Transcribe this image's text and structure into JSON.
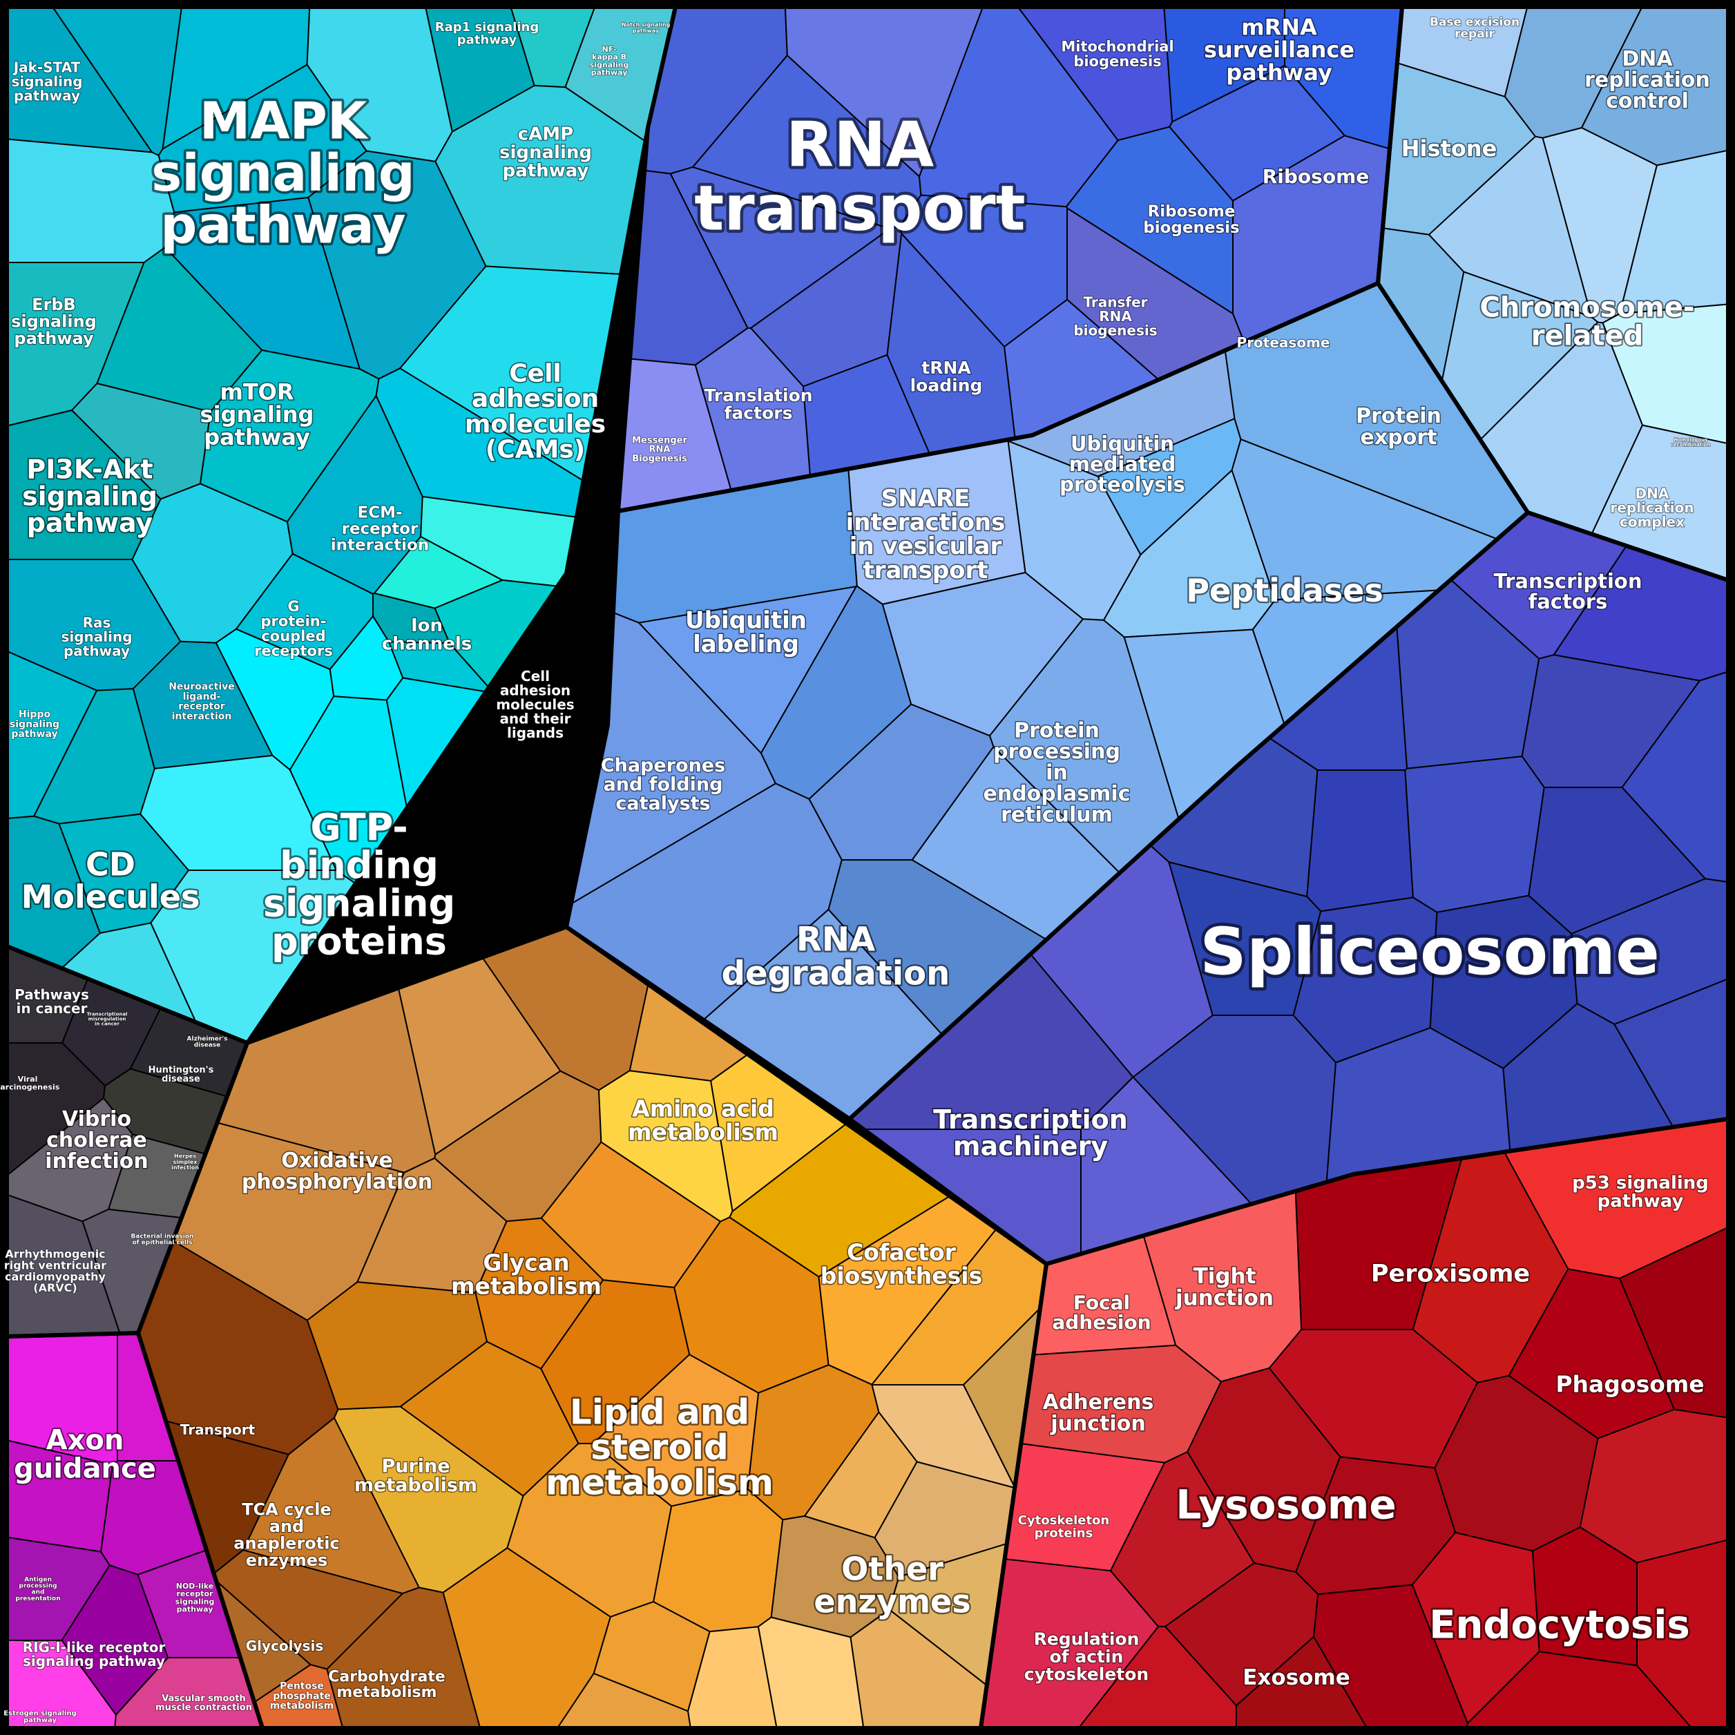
{
  "title": "",
  "colors": {
    "signaling": "#00c4dc",
    "genetic": "#5a73e6",
    "protein": "#7eb2f2",
    "spliceosome": "#3848b8",
    "metabolism": "#e8951e",
    "disease": "#4a4a55",
    "immune": "#d21fd2",
    "cellular": "#cc1020",
    "other_enzymes": "#e0b070"
  },
  "labels": [
    {
      "text": "MAPK\nsignaling\npathway",
      "group": "signaling"
    },
    {
      "text": "Jak-STAT\nsignaling\npathway",
      "group": "signaling"
    },
    {
      "text": "Rap1 signaling\npathway",
      "group": "signaling"
    },
    {
      "text": "Notch signaling\npathway",
      "group": "signaling"
    },
    {
      "text": "NF-\nkappa B\nsignaling\npathway",
      "group": "signaling"
    },
    {
      "text": "cAMP\nsignaling\npathway",
      "group": "signaling"
    },
    {
      "text": "ErbB\nsignaling\npathway",
      "group": "signaling"
    },
    {
      "text": "mTOR\nsignaling\npathway",
      "group": "signaling"
    },
    {
      "text": "PI3K-Akt\nsignaling\npathway",
      "group": "signaling"
    },
    {
      "text": "Cell\nadhesion\nmolecules\n(CAMs)",
      "group": "signaling"
    },
    {
      "text": "ECM-\nreceptor\ninteraction",
      "group": "signaling"
    },
    {
      "text": "Ras\nsignaling\npathway",
      "group": "signaling"
    },
    {
      "text": "G\nprotein-\ncoupled\nreceptors",
      "group": "signaling"
    },
    {
      "text": "Ion\nchannels",
      "group": "signaling"
    },
    {
      "text": "Neuroactive\nligand-\nreceptor\ninteraction",
      "group": "signaling"
    },
    {
      "text": "Cell\nadhesion\nmolecules\nand their\nligands",
      "group": "signaling"
    },
    {
      "text": "Hippo\nsignaling\npathway",
      "group": "signaling"
    },
    {
      "text": "CD\nMolecules",
      "group": "signaling"
    },
    {
      "text": "GTP-\nbinding\nsignaling\nproteins",
      "group": "signaling"
    },
    {
      "text": "RNA\ntransport",
      "group": "genetic"
    },
    {
      "text": "Mitochondrial\nbiogenesis",
      "group": "genetic"
    },
    {
      "text": "mRNA\nsurveillance\npathway",
      "group": "genetic"
    },
    {
      "text": "Ribosome",
      "group": "genetic"
    },
    {
      "text": "Ribosome\nbiogenesis",
      "group": "genetic"
    },
    {
      "text": "Transfer\nRNA\nbiogenesis",
      "group": "genetic"
    },
    {
      "text": "Translation\nfactors",
      "group": "genetic"
    },
    {
      "text": "tRNA\nloading",
      "group": "genetic"
    },
    {
      "text": "Messenger\nRNA\nBiogenesis",
      "group": "genetic"
    },
    {
      "text": "Base excision\nrepair",
      "group": "dna"
    },
    {
      "text": "DNA\nreplication\ncontrol",
      "group": "dna"
    },
    {
      "text": "Histone",
      "group": "dna"
    },
    {
      "text": "Chromosome-\nrelated",
      "group": "dna"
    },
    {
      "text": "Homologous\nrecombination",
      "group": "dna"
    },
    {
      "text": "DNA\nreplication\ncomplex",
      "group": "dna"
    },
    {
      "text": "Proteasome",
      "group": "protein"
    },
    {
      "text": "Protein\nexport",
      "group": "protein"
    },
    {
      "text": "Ubiquitin\nmediated\nproteolysis",
      "group": "protein"
    },
    {
      "text": "SNARE\ninteractions\nin vesicular\ntransport",
      "group": "protein"
    },
    {
      "text": "Peptidases",
      "group": "protein"
    },
    {
      "text": "Ubiquitin\nlabeling",
      "group": "protein"
    },
    {
      "text": "Chaperones\nand folding\ncatalysts",
      "group": "protein"
    },
    {
      "text": "Protein\nprocessing\nin\nendoplasmic\nreticulum",
      "group": "protein"
    },
    {
      "text": "RNA\ndegradation",
      "group": "protein"
    },
    {
      "text": "Transcription\nfactors",
      "group": "spliceosome"
    },
    {
      "text": "Spliceosome",
      "group": "spliceosome"
    },
    {
      "text": "Transcription\nmachinery",
      "group": "spliceosome"
    },
    {
      "text": "Pathways\nin cancer",
      "group": "disease"
    },
    {
      "text": "Transcriptional\nmisregulation\nin cancer",
      "group": "disease"
    },
    {
      "text": "Alzheimer's\ndisease",
      "group": "disease"
    },
    {
      "text": "Viral\ncarcinogenesis",
      "group": "disease"
    },
    {
      "text": "Huntington's\ndisease",
      "group": "disease"
    },
    {
      "text": "Vibrio\ncholerae\ninfection",
      "group": "disease"
    },
    {
      "text": "Herpes\nsimplex\ninfection",
      "group": "disease"
    },
    {
      "text": "Bacterial invasion\nof epithelial cells",
      "group": "disease"
    },
    {
      "text": "Arrhythmogenic\nright ventricular\ncardiomyopathy\n(ARVC)",
      "group": "disease"
    },
    {
      "text": "Oxidative\nphosphorylation",
      "group": "metabolism"
    },
    {
      "text": "Amino acid\nmetabolism",
      "group": "metabolism"
    },
    {
      "text": "Glycan\nmetabolism",
      "group": "metabolism"
    },
    {
      "text": "Cofactor\nbiosynthesis",
      "group": "metabolism"
    },
    {
      "text": "Transport",
      "group": "metabolism"
    },
    {
      "text": "Purine\nmetabolism",
      "group": "metabolism"
    },
    {
      "text": "Lipid and\nsteroid\nmetabolism",
      "group": "metabolism"
    },
    {
      "text": "TCA cycle\nand\nanaplerotic\nenzymes",
      "group": "metabolism"
    },
    {
      "text": "Glycolysis",
      "group": "metabolism"
    },
    {
      "text": "Carbohydrate\nmetabolism",
      "group": "metabolism"
    },
    {
      "text": "Pentose\nphosphate\nmetabolism",
      "group": "metabolism"
    },
    {
      "text": "Other\nenzymes",
      "group": "other_enzymes"
    },
    {
      "text": "Axon\nguidance",
      "group": "immune"
    },
    {
      "text": "Antigen\nprocessing\nand\npresentation",
      "group": "immune"
    },
    {
      "text": "NOD-like\nreceptor\nsignaling\npathway",
      "group": "immune"
    },
    {
      "text": "RIG-I-like receptor\nsignaling pathway",
      "group": "immune"
    },
    {
      "text": "Vascular smooth\nmuscle contraction",
      "group": "immune"
    },
    {
      "text": "Estrogen signaling\npathway",
      "group": "immune"
    },
    {
      "text": "p53 signaling\npathway",
      "group": "cellular"
    },
    {
      "text": "Tight\njunction",
      "group": "cellular"
    },
    {
      "text": "Focal\nadhesion",
      "group": "cellular"
    },
    {
      "text": "Peroxisome",
      "group": "cellular"
    },
    {
      "text": "Phagosome",
      "group": "cellular"
    },
    {
      "text": "Adherens\njunction",
      "group": "cellular"
    },
    {
      "text": "Lysosome",
      "group": "cellular"
    },
    {
      "text": "Cytoskeleton\nproteins",
      "group": "cellular"
    },
    {
      "text": "Regulation\nof actin\ncytoskeleton",
      "group": "cellular"
    },
    {
      "text": "Exosome",
      "group": "cellular"
    },
    {
      "text": "Endocytosis",
      "group": "cellular"
    }
  ]
}
